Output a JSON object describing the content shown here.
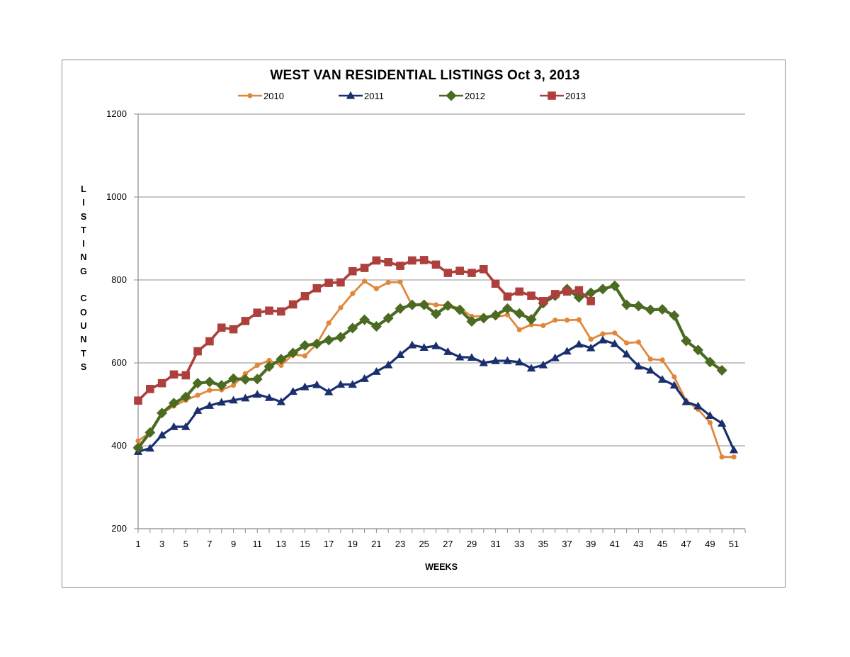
{
  "chart_data": {
    "type": "line",
    "title": "WEST VAN RESIDENTIAL LISTINGS Oct 3, 2013",
    "xlabel": "WEEKS",
    "ylabel": "LISTING COUNTS",
    "ylabel_letters": [
      "L",
      "I",
      "S",
      "T",
      "I",
      "N",
      "G",
      "",
      "C",
      "O",
      "U",
      "N",
      "T",
      "S"
    ],
    "ylim": [
      200,
      1200
    ],
    "yticks": [
      200,
      400,
      600,
      800,
      1000,
      1200
    ],
    "xlim": [
      1,
      51
    ],
    "xticks": [
      1,
      3,
      5,
      7,
      9,
      11,
      13,
      15,
      17,
      19,
      21,
      23,
      25,
      27,
      29,
      31,
      33,
      35,
      37,
      39,
      41,
      43,
      45,
      47,
      49,
      51
    ],
    "grid": true,
    "legend_position": "top",
    "series": [
      {
        "name": "2010",
        "color": "#E0873A",
        "marker": "circle",
        "values": [
          412,
          432,
          478,
          496,
          510,
          522,
          534,
          535,
          546,
          574,
          594,
          606,
          594,
          620,
          617,
          646,
          696,
          733,
          767,
          797,
          779,
          794,
          795,
          738,
          745,
          740,
          738,
          732,
          712,
          713,
          710,
          716,
          680,
          692,
          690,
          703,
          703,
          704,
          657,
          670,
          672,
          648,
          650,
          609,
          607,
          566,
          508,
          488,
          456,
          373,
          373
        ]
      },
      {
        "name": "2011",
        "color": "#1A2F6E",
        "marker": "triangle",
        "values": [
          386,
          394,
          426,
          446,
          446,
          485,
          497,
          505,
          510,
          515,
          524,
          516,
          506,
          531,
          542,
          547,
          530,
          548,
          548,
          562,
          579,
          595,
          620,
          643,
          637,
          641,
          627,
          614,
          613,
          600,
          605,
          605,
          602,
          587,
          595,
          612,
          628,
          645,
          636,
          655,
          646,
          621,
          592,
          582,
          560,
          546,
          506,
          496,
          473,
          454,
          390
        ]
      },
      {
        "name": "2012",
        "color": "#4B6A22",
        "marker": "diamond",
        "values": [
          395,
          432,
          479,
          503,
          518,
          551,
          554,
          546,
          562,
          560,
          561,
          591,
          609,
          624,
          642,
          646,
          655,
          662,
          684,
          704,
          688,
          708,
          731,
          740,
          740,
          718,
          738,
          728,
          700,
          708,
          715,
          731,
          719,
          705,
          744,
          762,
          778,
          758,
          769,
          778,
          786,
          740,
          737,
          728,
          729,
          714,
          653,
          631,
          602,
          582
        ]
      },
      {
        "name": "2013",
        "color": "#AD3F3C",
        "marker": "square",
        "values": [
          509,
          537,
          551,
          572,
          570,
          628,
          652,
          685,
          681,
          701,
          721,
          726,
          724,
          741,
          761,
          780,
          793,
          794,
          821,
          829,
          847,
          843,
          834,
          847,
          848,
          837,
          817,
          822,
          817,
          826,
          791,
          760,
          772,
          762,
          749,
          766,
          772,
          775,
          749
        ]
      }
    ]
  }
}
